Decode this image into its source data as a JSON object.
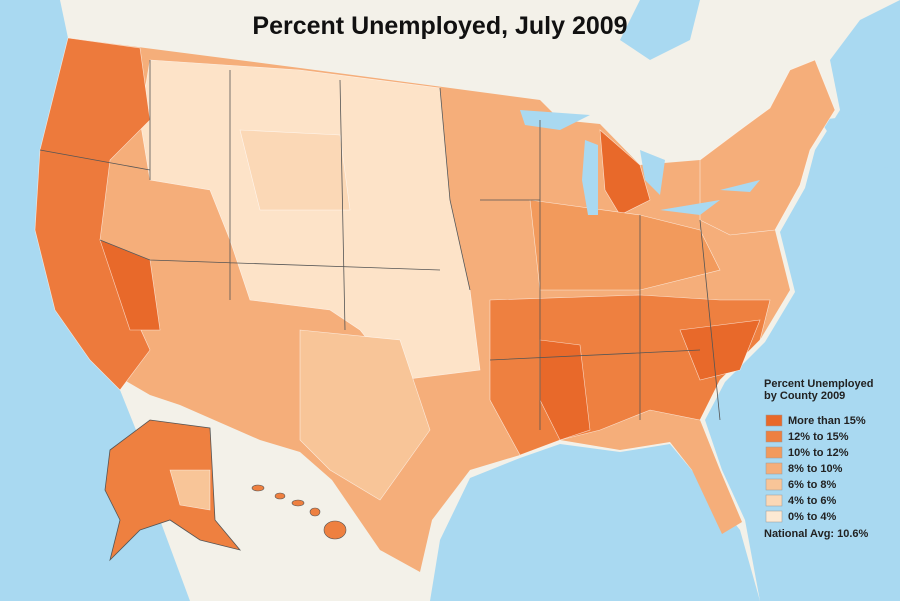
{
  "title": "Percent Unemployed, July 2009",
  "legend": {
    "title": [
      "Percent Unemployed",
      "by County 2009"
    ],
    "items": [
      {
        "label": "More than 15%",
        "color": "#e8692a"
      },
      {
        "label": "12% to 15%",
        "color": "#ee8040"
      },
      {
        "label": "10% to 12%",
        "color": "#f29a5c"
      },
      {
        "label": "8% to 10%",
        "color": "#f5ae7a"
      },
      {
        "label": "6% to 8%",
        "color": "#f8c598"
      },
      {
        "label": "4% to 6%",
        "color": "#fbd8b6"
      },
      {
        "label": "0% to 4%",
        "color": "#fde9d3"
      }
    ],
    "note": "National Avg: 10.6%"
  }
}
